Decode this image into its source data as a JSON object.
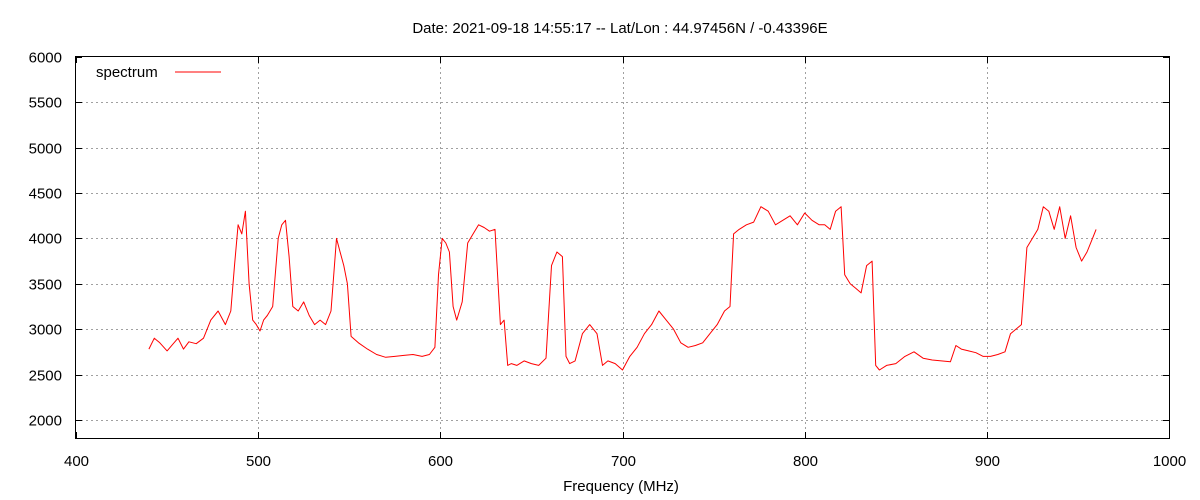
{
  "chart_data": {
    "type": "line",
    "title": "Date: 2021-09-18 14:55:17  --  Lat/Lon : 44.97456N / -0.43396E",
    "xlabel": "Frequency (MHz)",
    "ylabel": "",
    "xlim": [
      400,
      1000
    ],
    "ylim": [
      1800,
      6000
    ],
    "xticks": [
      400,
      500,
      600,
      700,
      800,
      900,
      1000
    ],
    "yticks": [
      2000,
      2500,
      3000,
      3500,
      4000,
      4500,
      5000,
      5500,
      6000
    ],
    "grid": true,
    "legend_position": "top-left",
    "series": [
      {
        "name": "spectrum",
        "color": "#ff0000",
        "x": [
          440,
          443,
          446,
          450,
          453,
          456,
          459,
          462,
          466,
          470,
          474,
          478,
          482,
          485,
          487,
          489,
          491,
          493,
          495,
          497,
          499,
          501,
          503,
          505,
          508,
          511,
          513,
          515,
          517,
          519,
          522,
          525,
          528,
          531,
          534,
          537,
          540,
          543,
          545,
          547,
          549,
          551,
          555,
          560,
          565,
          570,
          575,
          580,
          585,
          590,
          594,
          597,
          599,
          601,
          603,
          605,
          607,
          609,
          612,
          615,
          618,
          621,
          624,
          627,
          630,
          633,
          635,
          637,
          639,
          642,
          646,
          650,
          654,
          658,
          661,
          664,
          667,
          669,
          671,
          674,
          678,
          682,
          686,
          689,
          692,
          696,
          700,
          704,
          708,
          712,
          716,
          720,
          724,
          728,
          732,
          736,
          740,
          744,
          748,
          752,
          756,
          759,
          761,
          764,
          768,
          772,
          776,
          780,
          784,
          788,
          792,
          796,
          800,
          804,
          808,
          811,
          814,
          817,
          820,
          822,
          825,
          828,
          831,
          834,
          837,
          839,
          841,
          845,
          850,
          855,
          860,
          865,
          870,
          875,
          880,
          883,
          886,
          890,
          894,
          898,
          902,
          906,
          910,
          913,
          916,
          919,
          922,
          925,
          928,
          931,
          934,
          937,
          940,
          943,
          946,
          949,
          952,
          955,
          958,
          960
        ],
        "y": [
          2780,
          2900,
          2850,
          2760,
          2830,
          2900,
          2780,
          2860,
          2840,
          2900,
          3100,
          3200,
          3050,
          3200,
          3700,
          4150,
          4050,
          4300,
          3500,
          3100,
          3050,
          2980,
          3100,
          3150,
          3250,
          4000,
          4150,
          4200,
          3800,
          3250,
          3200,
          3300,
          3150,
          3050,
          3100,
          3050,
          3200,
          4000,
          3850,
          3700,
          3500,
          2920,
          2850,
          2780,
          2720,
          2690,
          2700,
          2710,
          2720,
          2700,
          2720,
          2800,
          3600,
          4000,
          3950,
          3850,
          3250,
          3100,
          3300,
          3950,
          4050,
          4150,
          4120,
          4080,
          4100,
          3050,
          3100,
          2600,
          2620,
          2600,
          2650,
          2620,
          2600,
          2680,
          3700,
          3850,
          3800,
          2700,
          2620,
          2650,
          2950,
          3050,
          2950,
          2600,
          2650,
          2620,
          2550,
          2700,
          2800,
          2950,
          3050,
          3200,
          3100,
          3000,
          2850,
          2800,
          2820,
          2850,
          2950,
          3050,
          3200,
          3250,
          4050,
          4100,
          4150,
          4180,
          4350,
          4300,
          4150,
          4200,
          4250,
          4150,
          4280,
          4200,
          4150,
          4150,
          4100,
          4300,
          4350,
          3600,
          3500,
          3450,
          3400,
          3700,
          3750,
          2600,
          2550,
          2600,
          2620,
          2700,
          2750,
          2680,
          2660,
          2650,
          2640,
          2820,
          2780,
          2760,
          2740,
          2700,
          2700,
          2720,
          2750,
          2950,
          3000,
          3050,
          3900,
          4000,
          4100,
          4350,
          4300,
          4100,
          4350,
          4000,
          4250,
          3900,
          3750,
          3850,
          4000,
          4100
        ]
      }
    ]
  }
}
